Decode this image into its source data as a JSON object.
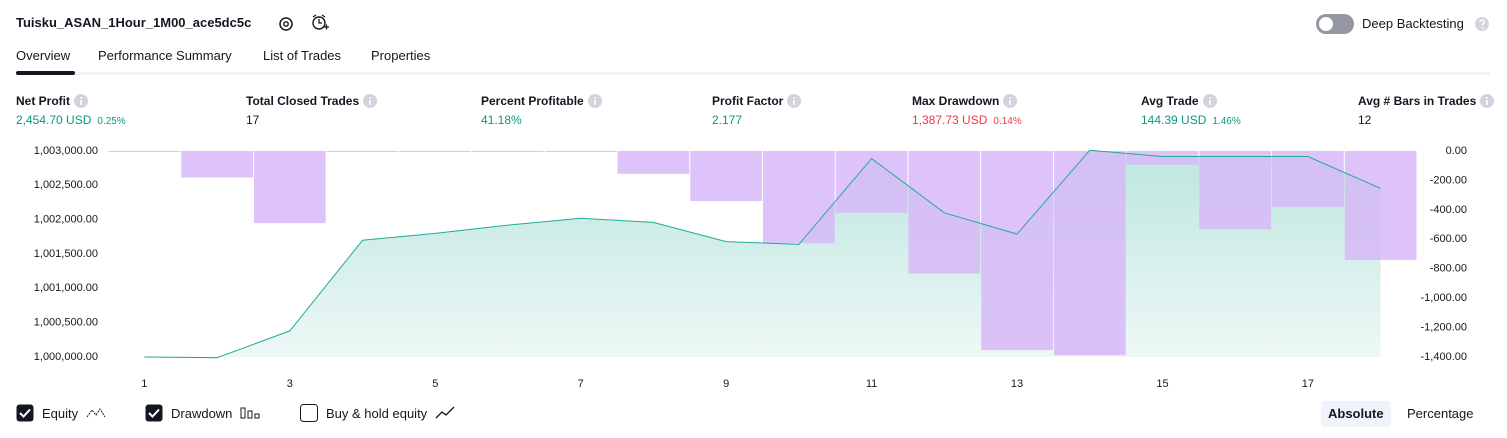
{
  "header": {
    "title": "Tuisku_ASAN_1Hour_1M00_ace5dc5c",
    "deep_backtesting": "Deep Backtesting"
  },
  "tabs": [
    "Overview",
    "Performance Summary",
    "List of Trades",
    "Properties"
  ],
  "metrics": [
    {
      "label": "Net Profit",
      "value": "2,454.70 USD",
      "percent": "0.25%",
      "color": "#089981"
    },
    {
      "label": "Total Closed Trades",
      "value": "17",
      "color": "#131722"
    },
    {
      "label": "Percent Profitable",
      "value": "41.18%",
      "color": "#089981"
    },
    {
      "label": "Profit Factor",
      "value": "2.177",
      "color": "#089981"
    },
    {
      "label": "Max Drawdown",
      "value": "1,387.73 USD",
      "percent": "0.14%",
      "color": "#f23645"
    },
    {
      "label": "Avg Trade",
      "value": "144.39 USD",
      "percent": "1.46%",
      "color": "#089981"
    },
    {
      "label": "Avg # Bars in Trades",
      "value": "12",
      "color": "#131722"
    }
  ],
  "chart_data": {
    "type": "combo",
    "x": [
      1,
      2,
      3,
      4,
      5,
      6,
      7,
      8,
      9,
      10,
      11,
      12,
      13,
      14,
      15,
      16,
      17,
      18
    ],
    "xlim": [
      0.5,
      18.5
    ],
    "xticks": [
      1,
      3,
      5,
      7,
      9,
      11,
      13,
      15,
      17
    ],
    "ylim": [
      1000000,
      1003000
    ],
    "yticks": [
      {
        "value": 1000000,
        "label": "1,000,000.00"
      },
      {
        "value": 1000500,
        "label": "1,000,500.00"
      },
      {
        "value": 1001000,
        "label": "1,001,000.00"
      },
      {
        "value": 1001500,
        "label": "1,001,500.00"
      },
      {
        "value": 1002000,
        "label": "1,002,000.00"
      },
      {
        "value": 1002500,
        "label": "1,002,500.00"
      },
      {
        "value": 1003000,
        "label": "1,003,000.00"
      }
    ],
    "y2lim": [
      -1400,
      0
    ],
    "y2ticks": [
      {
        "value": 0,
        "label": "0.00"
      },
      {
        "value": -200,
        "label": "-200.00"
      },
      {
        "value": -400,
        "label": "-400.00"
      },
      {
        "value": -600,
        "label": "-600.00"
      },
      {
        "value": -800,
        "label": "-800.00"
      },
      {
        "value": -1000,
        "label": "-1,000.00"
      },
      {
        "value": -1200,
        "label": "-1,200.00"
      },
      {
        "value": -1400,
        "label": "-1,400.00"
      }
    ],
    "series": [
      {
        "name": "Equity",
        "kind": "line",
        "color": "#22ab94",
        "values": [
          1000000,
          999990,
          1000380,
          1001700,
          1001800,
          1001920,
          1002020,
          1001960,
          1001680,
          1001640,
          1002890,
          1002100,
          1001790,
          1003010,
          1002920,
          1002920,
          1002920,
          1002454.7
        ]
      },
      {
        "name": "Drawdown",
        "kind": "bar",
        "axis": "y2",
        "color": "#d7b8f8",
        "values": [
          0,
          -180,
          -490,
          0,
          0,
          0,
          -5,
          -155,
          -340,
          -627,
          -420,
          -833,
          -1353,
          -1387.73,
          -93,
          -533,
          -380,
          -740
        ]
      }
    ]
  },
  "legend_controls": [
    {
      "label": "Buy & hold equity",
      "checked": false
    }
  ],
  "series_checked": [
    true,
    true
  ],
  "view_modes": [
    "Absolute",
    "Percentage"
  ],
  "active_view_mode": 0
}
